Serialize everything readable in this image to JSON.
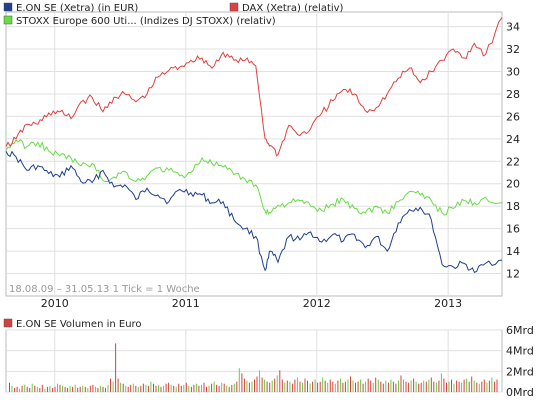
{
  "chart_data": [
    {
      "type": "line",
      "legend_placement": "top-left",
      "grid": true,
      "period_label": "18.08.09 – 31.05.13   1 Tick = 1 Woche",
      "x_ticks": [
        "2010",
        "2011",
        "2012",
        "2013"
      ],
      "x_tick_dates": [
        "2010-01-01",
        "2011-01-01",
        "2012-01-01",
        "2013-01-01"
      ],
      "y_ticks": [
        12,
        14,
        16,
        18,
        20,
        22,
        24,
        26,
        28,
        30,
        32,
        34
      ],
      "ylim": [
        10.0,
        35.3
      ],
      "xlim": [
        "2009-08-18",
        "2013-05-31"
      ],
      "y_axis_side": "right",
      "series": [
        {
          "name": "E.ON SE (Xetra) (in EUR)",
          "color": "#1f3f8f",
          "x": [
            "2009-08-18",
            "2009-09-15",
            "2009-10-15",
            "2009-11-15",
            "2009-12-15",
            "2010-01-15",
            "2010-02-15",
            "2010-03-15",
            "2010-04-15",
            "2010-05-15",
            "2010-06-15",
            "2010-07-15",
            "2010-08-15",
            "2010-09-15",
            "2010-10-15",
            "2010-11-15",
            "2010-12-15",
            "2011-01-15",
            "2011-02-15",
            "2011-03-15",
            "2011-04-15",
            "2011-05-15",
            "2011-06-15",
            "2011-07-15",
            "2011-08-10",
            "2011-08-25",
            "2011-09-15",
            "2011-10-15",
            "2011-11-15",
            "2011-12-15",
            "2012-01-15",
            "2012-02-15",
            "2012-03-15",
            "2012-04-15",
            "2012-05-15",
            "2012-06-15",
            "2012-07-15",
            "2012-08-15",
            "2012-09-15",
            "2012-10-15",
            "2012-11-15",
            "2012-12-15",
            "2013-01-15",
            "2013-02-15",
            "2013-03-15",
            "2013-04-15",
            "2013-05-31"
          ],
          "values": [
            22.9,
            22.4,
            21.2,
            21.6,
            20.9,
            20.6,
            21.6,
            20.2,
            20.1,
            21.2,
            19.7,
            19.9,
            18.6,
            19.6,
            19.0,
            18.4,
            19.5,
            19.2,
            19.0,
            18.3,
            18.4,
            16.8,
            16.0,
            15.3,
            12.3,
            14.0,
            13.0,
            15.3,
            15.0,
            15.7,
            14.8,
            15.5,
            14.9,
            15.5,
            14.3,
            15.3,
            14.0,
            16.5,
            17.7,
            17.9,
            16.8,
            12.8,
            12.6,
            12.9,
            12.1,
            12.9,
            13.2
          ]
        },
        {
          "name": "DAX (Xetra) (relativ)",
          "color": "#e04040",
          "x": [
            "2009-08-18",
            "2009-09-15",
            "2009-10-15",
            "2009-11-15",
            "2009-12-15",
            "2010-01-15",
            "2010-02-15",
            "2010-03-15",
            "2010-04-15",
            "2010-05-15",
            "2010-06-15",
            "2010-07-15",
            "2010-08-15",
            "2010-09-15",
            "2010-10-15",
            "2010-11-15",
            "2010-12-15",
            "2011-01-15",
            "2011-02-15",
            "2011-03-15",
            "2011-04-15",
            "2011-05-15",
            "2011-06-15",
            "2011-07-15",
            "2011-08-10",
            "2011-08-25",
            "2011-09-15",
            "2011-10-15",
            "2011-11-15",
            "2011-12-15",
            "2012-01-15",
            "2012-02-15",
            "2012-03-15",
            "2012-04-15",
            "2012-05-15",
            "2012-06-15",
            "2012-07-15",
            "2012-08-15",
            "2012-09-15",
            "2012-10-15",
            "2012-11-15",
            "2012-12-15",
            "2013-01-15",
            "2013-02-15",
            "2013-03-15",
            "2013-04-15",
            "2013-05-31"
          ],
          "values": [
            23.3,
            24.0,
            25.3,
            25.3,
            26.3,
            26.4,
            25.8,
            27.3,
            27.7,
            26.4,
            27.7,
            28.0,
            27.3,
            28.0,
            29.5,
            30.1,
            30.4,
            31.0,
            31.2,
            30.3,
            31.7,
            31.0,
            31.0,
            30.5,
            24.0,
            23.4,
            22.6,
            25.2,
            24.3,
            24.9,
            26.3,
            27.4,
            28.4,
            28.0,
            26.5,
            26.8,
            28.0,
            29.4,
            30.3,
            29.0,
            30.0,
            31.0,
            32.0,
            31.2,
            32.5,
            31.5,
            34.8
          ]
        },
        {
          "name": "STOXX Europe 600 Uti... (Indizes DJ STOXX) (relativ)",
          "color": "#66dd44",
          "x": [
            "2009-08-18",
            "2009-09-15",
            "2009-10-15",
            "2009-11-15",
            "2009-12-15",
            "2010-01-15",
            "2010-02-15",
            "2010-03-15",
            "2010-04-15",
            "2010-05-15",
            "2010-06-15",
            "2010-07-15",
            "2010-08-15",
            "2010-09-15",
            "2010-10-15",
            "2010-11-15",
            "2010-12-15",
            "2011-01-15",
            "2011-02-15",
            "2011-03-15",
            "2011-04-15",
            "2011-05-15",
            "2011-06-15",
            "2011-07-15",
            "2011-08-10",
            "2011-08-25",
            "2011-09-15",
            "2011-10-15",
            "2011-11-15",
            "2011-12-15",
            "2012-01-15",
            "2012-02-15",
            "2012-03-15",
            "2012-04-15",
            "2012-05-15",
            "2012-06-15",
            "2012-07-15",
            "2012-08-15",
            "2012-09-15",
            "2012-10-15",
            "2012-11-15",
            "2012-12-15",
            "2013-01-15",
            "2013-02-15",
            "2013-03-15",
            "2013-04-15",
            "2013-05-31"
          ],
          "values": [
            23.0,
            23.9,
            23.3,
            23.7,
            22.9,
            22.5,
            22.3,
            21.6,
            21.8,
            20.3,
            20.6,
            21.1,
            20.2,
            20.7,
            21.4,
            21.2,
            20.7,
            21.0,
            22.3,
            21.8,
            21.5,
            20.8,
            20.4,
            19.9,
            17.6,
            17.4,
            18.1,
            18.3,
            18.5,
            18.0,
            17.6,
            18.2,
            18.6,
            17.8,
            17.4,
            18.0,
            17.4,
            18.4,
            19.3,
            19.0,
            18.5,
            17.4,
            17.8,
            18.5,
            18.3,
            18.8,
            18.3
          ]
        }
      ]
    },
    {
      "type": "bar",
      "legend_placement": "top-left",
      "grid": true,
      "series": [
        {
          "name": "E.ON SE Volumen in Euro",
          "color": "#d84040",
          "unit": "Mrd",
          "note": "weekly volume bars; colored red/green by weekly price change"
        }
      ],
      "y_ticks": [
        "0Mrd",
        "2Mrd",
        "4Mrd",
        "6Mrd"
      ],
      "ylim": [
        0,
        6
      ],
      "bar_colors": {
        "up": "#66cc44",
        "down": "#d84040"
      },
      "values_note": "weekly, in Mrd EUR, estimated",
      "weekly_values": [
        0.9,
        0.6,
        0.4,
        0.5,
        0.3,
        0.6,
        0.7,
        0.5,
        0.4,
        0.8,
        0.6,
        0.5,
        0.4,
        0.7,
        0.3,
        0.5,
        0.6,
        0.4,
        0.5,
        0.8,
        0.7,
        0.6,
        0.5,
        0.4,
        0.6,
        0.5,
        0.7,
        0.4,
        0.5,
        0.6,
        0.5,
        0.4,
        0.6,
        0.7,
        0.5,
        0.4,
        0.6,
        0.5,
        0.4,
        0.7,
        1.3,
        1.0,
        4.7,
        1.3,
        0.9,
        0.8,
        0.6,
        0.5,
        0.7,
        0.8,
        0.6,
        0.5,
        0.6,
        0.8,
        0.7,
        0.6,
        1.0,
        0.8,
        0.6,
        0.7,
        0.5,
        0.6,
        0.8,
        0.9,
        0.7,
        0.6,
        0.5,
        0.8,
        0.6,
        0.7,
        0.9,
        0.6,
        0.5,
        0.7,
        0.8,
        0.6,
        0.7,
        0.9,
        0.5,
        0.6,
        0.8,
        1.0,
        0.7,
        0.6,
        0.9,
        0.8,
        0.6,
        0.5,
        0.7,
        0.8,
        1.0,
        2.3,
        1.8,
        1.3,
        1.1,
        0.9,
        1.0,
        1.2,
        1.5,
        2.1,
        1.4,
        1.2,
        1.0,
        0.9,
        1.1,
        1.3,
        1.6,
        2.1,
        1.2,
        0.9,
        1.1,
        1.0,
        0.8,
        1.2,
        1.4,
        1.0,
        0.9,
        1.3,
        1.1,
        0.8,
        1.0,
        1.2,
        0.9,
        1.0,
        1.4,
        1.1,
        0.9,
        1.2,
        1.0,
        0.8,
        1.1,
        1.3,
        0.9,
        1.0,
        1.2,
        1.5,
        1.1,
        0.9,
        1.0,
        1.2,
        0.8,
        1.0,
        1.3,
        1.1,
        0.9,
        1.4,
        1.2,
        1.0,
        0.8,
        1.1,
        0.9,
        1.2,
        1.0,
        0.8,
        1.1,
        1.6,
        1.2,
        1.0,
        0.9,
        1.1,
        1.3,
        1.0,
        0.8,
        0.9,
        1.1,
        1.0,
        1.2,
        1.4,
        1.0,
        0.9,
        1.1,
        1.8,
        1.3,
        0.9,
        1.0,
        1.2,
        0.8,
        1.1,
        1.0,
        0.9,
        1.2,
        1.3,
        1.0,
        1.5,
        1.1,
        0.9,
        0.8,
        1.0,
        1.2,
        0.9,
        1.1,
        1.4,
        1.0,
        1.2
      ]
    }
  ]
}
